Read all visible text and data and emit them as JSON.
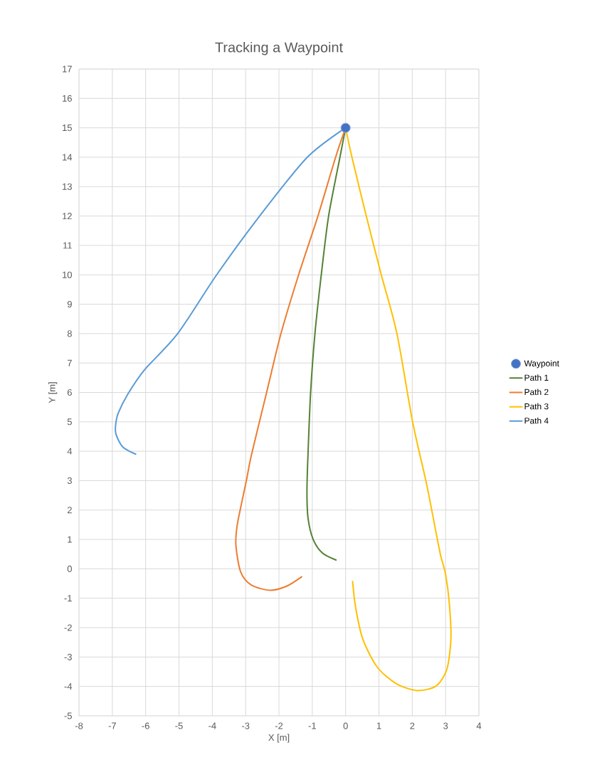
{
  "chart_data": {
    "type": "line",
    "title": "Tracking a Waypoint",
    "xlabel": "X [m]",
    "ylabel": "Y [m]",
    "xlim": [
      -8,
      4
    ],
    "xticks": [
      -8,
      -7,
      -6,
      -5,
      -4,
      -3,
      -2,
      -1,
      0,
      1,
      2,
      3,
      4
    ],
    "ylim": [
      -5,
      17
    ],
    "yticks": [
      -5,
      -4,
      -3,
      -2,
      -1,
      0,
      1,
      2,
      3,
      4,
      5,
      6,
      7,
      8,
      9,
      10,
      11,
      12,
      13,
      14,
      15,
      16,
      17
    ],
    "grid": true,
    "legend": "right",
    "line_style": "solid",
    "series": [
      {
        "name": "Waypoint",
        "type": "scatter",
        "marker": "circle",
        "color": "#4472c4",
        "x": [
          0
        ],
        "values": [
          15
        ]
      },
      {
        "name": "Path 1",
        "marker": "none",
        "color": "#548235",
        "x": [
          -0.29,
          -0.7,
          -0.98,
          -1.13,
          -1.16,
          -1.13,
          -1.05,
          -0.92,
          -0.73,
          -0.51,
          -0.17,
          0
        ],
        "values": [
          0.3,
          0.54,
          1.02,
          1.75,
          2.64,
          3.85,
          6,
          8,
          10,
          12,
          14,
          15
        ]
      },
      {
        "name": "Path 2",
        "marker": "none",
        "color": "#ed7d31",
        "x": [
          -1.32,
          -1.77,
          -2.26,
          -2.83,
          -3.15,
          -3.29,
          -3.26,
          -3.12,
          -2.97,
          -2.83,
          -2.37,
          -1.94,
          -1.41,
          -0.83,
          -0.3,
          0
        ],
        "values": [
          -0.27,
          -0.59,
          -0.73,
          -0.55,
          -0.1,
          0.78,
          1.43,
          2.24,
          3.04,
          3.85,
          6,
          8,
          10,
          12,
          14,
          15
        ]
      },
      {
        "name": "Path 3",
        "marker": "none",
        "color": "#ffc000",
        "x": [
          0.21,
          0.3,
          0.51,
          0.94,
          1.51,
          2.15,
          2.72,
          3.04,
          3.16,
          3.11,
          3.0,
          2.85,
          2.75,
          2.43,
          2.01,
          1.54,
          1.07,
          0.62,
          0.19,
          0
        ],
        "values": [
          -0.43,
          -1.31,
          -2.37,
          -3.33,
          -3.9,
          -4.14,
          -3.98,
          -3.41,
          -2.37,
          -1.15,
          -0.19,
          0.46,
          1.02,
          2.88,
          5,
          8,
          10,
          12,
          14,
          15
        ]
      },
      {
        "name": "Path 4",
        "marker": "none",
        "color": "#5b9bd5",
        "x": [
          -6.3,
          -6.69,
          -6.89,
          -6.9,
          -6.82,
          -6.53,
          -6.04,
          -5.04,
          -3.87,
          -2.58,
          -1.15,
          0
        ],
        "values": [
          3.9,
          4.15,
          4.58,
          4.9,
          5.3,
          5.95,
          6.76,
          8,
          10,
          12,
          14,
          15
        ]
      }
    ]
  }
}
